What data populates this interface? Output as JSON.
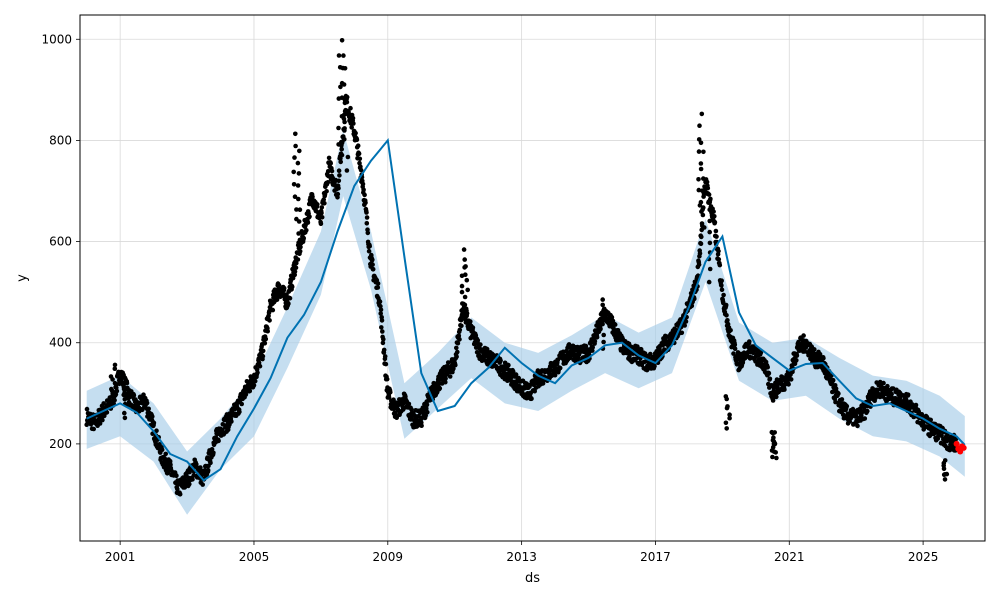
{
  "chart_data": {
    "type": "line",
    "title": "",
    "xlabel": "ds",
    "ylabel": "y",
    "grid": true,
    "legend": "none",
    "xlim": [
      "2000-01-01",
      "2026-12-31"
    ],
    "ylim": [
      0,
      1050
    ],
    "x_ticks": [
      "2001",
      "2005",
      "2009",
      "2013",
      "2017",
      "2021",
      "2025"
    ],
    "y_ticks": [
      200,
      400,
      600,
      800,
      1000
    ],
    "colors": {
      "observed": "#000000",
      "forecast_line": "#0072B2",
      "uncertainty_band": "#A6CDE8",
      "highlight": "#FF0000",
      "grid": "#d9d9d9"
    },
    "series": [
      {
        "kind": "forecast_line",
        "x": [
          "2000-01-01",
          "2000-07-01",
          "2001-01-01",
          "2001-07-01",
          "2002-01-01",
          "2002-07-01",
          "2003-01-01",
          "2003-07-01",
          "2004-01-01",
          "2004-07-01",
          "2005-01-01",
          "2005-07-01",
          "2006-01-01",
          "2006-07-01",
          "2007-01-01",
          "2007-07-01",
          "2008-01-01",
          "2008-07-01",
          "2009-01-01",
          "2009-07-01",
          "2010-01-01",
          "2010-07-01",
          "2011-01-01",
          "2011-07-01",
          "2012-01-01",
          "2012-07-01",
          "2013-01-01",
          "2013-07-01",
          "2014-01-01",
          "2014-07-01",
          "2015-01-01",
          "2015-07-01",
          "2016-01-01",
          "2016-07-01",
          "2017-01-01",
          "2017-07-01",
          "2018-01-01",
          "2018-07-01",
          "2019-01-01",
          "2019-07-01",
          "2020-01-01",
          "2020-07-01",
          "2021-01-01",
          "2021-07-01",
          "2022-01-01",
          "2022-07-01",
          "2023-01-01",
          "2023-07-01",
          "2024-01-01",
          "2024-07-01",
          "2025-01-01",
          "2025-07-01",
          "2026-01-01",
          "2026-04-01"
        ],
        "y": [
          250,
          265,
          280,
          262,
          225,
          180,
          165,
          128,
          150,
          215,
          270,
          330,
          410,
          455,
          520,
          620,
          710,
          760,
          800,
          570,
          340,
          265,
          275,
          320,
          350,
          390,
          360,
          335,
          320,
          355,
          370,
          395,
          400,
          375,
          360,
          395,
          470,
          560,
          610,
          460,
          395,
          370,
          345,
          358,
          360,
          325,
          290,
          275,
          280,
          265,
          250,
          230,
          215,
          198
        ]
      },
      {
        "kind": "uncertainty_upper",
        "x": [
          "2000-01-01",
          "2001-01-01",
          "2002-01-01",
          "2003-01-01",
          "2004-01-01",
          "2005-01-01",
          "2006-01-01",
          "2007-01-01",
          "2007-09-01",
          "2008-07-01",
          "2009-07-01",
          "2010-07-01",
          "2011-07-01",
          "2012-07-01",
          "2013-07-01",
          "2014-07-01",
          "2015-07-01",
          "2016-07-01",
          "2017-07-01",
          "2018-07-01",
          "2019-07-01",
          "2020-07-01",
          "2021-07-01",
          "2022-07-01",
          "2023-07-01",
          "2024-07-01",
          "2025-07-01",
          "2026-04-01"
        ],
        "y": [
          305,
          335,
          280,
          185,
          250,
          330,
          470,
          620,
          820,
          620,
          320,
          380,
          450,
          400,
          380,
          415,
          455,
          420,
          450,
          645,
          440,
          400,
          410,
          370,
          335,
          325,
          295,
          255
        ]
      },
      {
        "kind": "uncertainty_lower",
        "x": [
          "2000-01-01",
          "2001-01-01",
          "2002-01-01",
          "2003-01-01",
          "2004-01-01",
          "2005-01-01",
          "2006-01-01",
          "2007-01-01",
          "2007-09-01",
          "2008-07-01",
          "2009-07-01",
          "2010-07-01",
          "2011-07-01",
          "2012-07-01",
          "2013-07-01",
          "2014-07-01",
          "2015-07-01",
          "2016-07-01",
          "2017-07-01",
          "2018-07-01",
          "2019-07-01",
          "2020-07-01",
          "2021-07-01",
          "2022-07-01",
          "2023-07-01",
          "2024-07-01",
          "2025-07-01",
          "2026-04-01"
        ],
        "y": [
          190,
          215,
          165,
          60,
          150,
          215,
          350,
          495,
          690,
          505,
          210,
          270,
          330,
          280,
          265,
          305,
          340,
          310,
          340,
          520,
          325,
          285,
          295,
          250,
          215,
          205,
          175,
          135
        ]
      },
      {
        "kind": "observed",
        "x": [
          "2000-01-01",
          "2000-04-01",
          "2000-07-01",
          "2000-10-01",
          "2001-01-01",
          "2001-04-01",
          "2001-07-01",
          "2001-10-01",
          "2002-01-01",
          "2002-04-01",
          "2002-07-01",
          "2002-10-01",
          "2003-01-01",
          "2003-04-01",
          "2003-07-01",
          "2003-10-01",
          "2004-01-01",
          "2004-04-01",
          "2004-07-01",
          "2004-10-01",
          "2005-01-01",
          "2005-04-01",
          "2005-07-01",
          "2005-10-01",
          "2006-01-01",
          "2006-04-01",
          "2006-07-01",
          "2006-10-01",
          "2007-01-01",
          "2007-04-01",
          "2007-07-01",
          "2007-10-01",
          "2008-01-01",
          "2008-04-01",
          "2008-07-01",
          "2008-10-01",
          "2009-01-01",
          "2009-04-01",
          "2009-07-01",
          "2009-10-01",
          "2010-01-01",
          "2010-04-01",
          "2010-07-01",
          "2010-10-01",
          "2011-01-01",
          "2011-04-01",
          "2011-07-01",
          "2011-10-01",
          "2012-01-01",
          "2012-04-01",
          "2012-07-01",
          "2012-10-01",
          "2013-01-01",
          "2013-04-01",
          "2013-07-01",
          "2013-10-01",
          "2014-01-01",
          "2014-04-01",
          "2014-07-01",
          "2014-10-01",
          "2015-01-01",
          "2015-04-01",
          "2015-07-01",
          "2015-10-01",
          "2016-01-01",
          "2016-04-01",
          "2016-07-01",
          "2016-10-01",
          "2017-01-01",
          "2017-04-01",
          "2017-07-01",
          "2017-10-01",
          "2018-01-01",
          "2018-04-01",
          "2018-07-01",
          "2018-10-01",
          "2019-01-01",
          "2019-04-01",
          "2019-07-01",
          "2019-10-01",
          "2020-01-01",
          "2020-04-01",
          "2020-07-01",
          "2020-10-01",
          "2021-01-01",
          "2021-04-01",
          "2021-07-01",
          "2021-10-01",
          "2022-01-01",
          "2022-04-01",
          "2022-07-01",
          "2022-10-01",
          "2023-01-01",
          "2023-04-01",
          "2023-07-01",
          "2023-10-01",
          "2024-01-01",
          "2024-04-01",
          "2024-07-01",
          "2024-10-01",
          "2025-01-01",
          "2025-04-01",
          "2025-07-01",
          "2025-10-01",
          "2026-01-01"
        ],
        "y": [
          255,
          240,
          265,
          280,
          340,
          300,
          270,
          285,
          230,
          175,
          150,
          110,
          130,
          155,
          130,
          190,
          230,
          245,
          270,
          305,
          330,
          380,
          470,
          510,
          480,
          560,
          620,
          690,
          640,
          750,
          700,
          880,
          820,
          720,
          560,
          490,
          300,
          265,
          285,
          250,
          250,
          290,
          320,
          340,
          360,
          470,
          420,
          385,
          370,
          360,
          345,
          330,
          310,
          300,
          330,
          340,
          350,
          370,
          385,
          375,
          380,
          420,
          460,
          430,
          395,
          380,
          375,
          360,
          365,
          395,
          410,
          430,
          470,
          520,
          720,
          640,
          500,
          410,
          360,
          390,
          375,
          360,
          300,
          320,
          330,
          390,
          400,
          370,
          360,
          320,
          280,
          255,
          250,
          265,
          300,
          310,
          295,
          290,
          285,
          265,
          245,
          230,
          220,
          205,
          200
        ]
      },
      {
        "kind": "observed_spikes",
        "x": [
          "2000-10-15",
          "2001-03-01",
          "2006-04-01",
          "2006-05-01",
          "2007-08-01",
          "2007-09-01",
          "2007-10-01",
          "2011-04-01",
          "2011-05-01",
          "2015-06-01",
          "2018-05-01",
          "2018-06-01",
          "2018-08-01",
          "2019-03-01",
          "2020-07-01",
          "2020-08-01",
          "2025-09-01"
        ],
        "y": [
          355,
          320,
          810,
          780,
          1000,
          970,
          940,
          585,
          555,
          490,
          850,
          800,
          660,
          295,
          225,
          222,
          165
        ]
      },
      {
        "kind": "highlight",
        "x": [
          "2026-01-01",
          "2026-01-20",
          "2026-02-10",
          "2026-03-01",
          "2026-03-20"
        ],
        "y": [
          200,
          190,
          185,
          195,
          192
        ]
      }
    ]
  }
}
